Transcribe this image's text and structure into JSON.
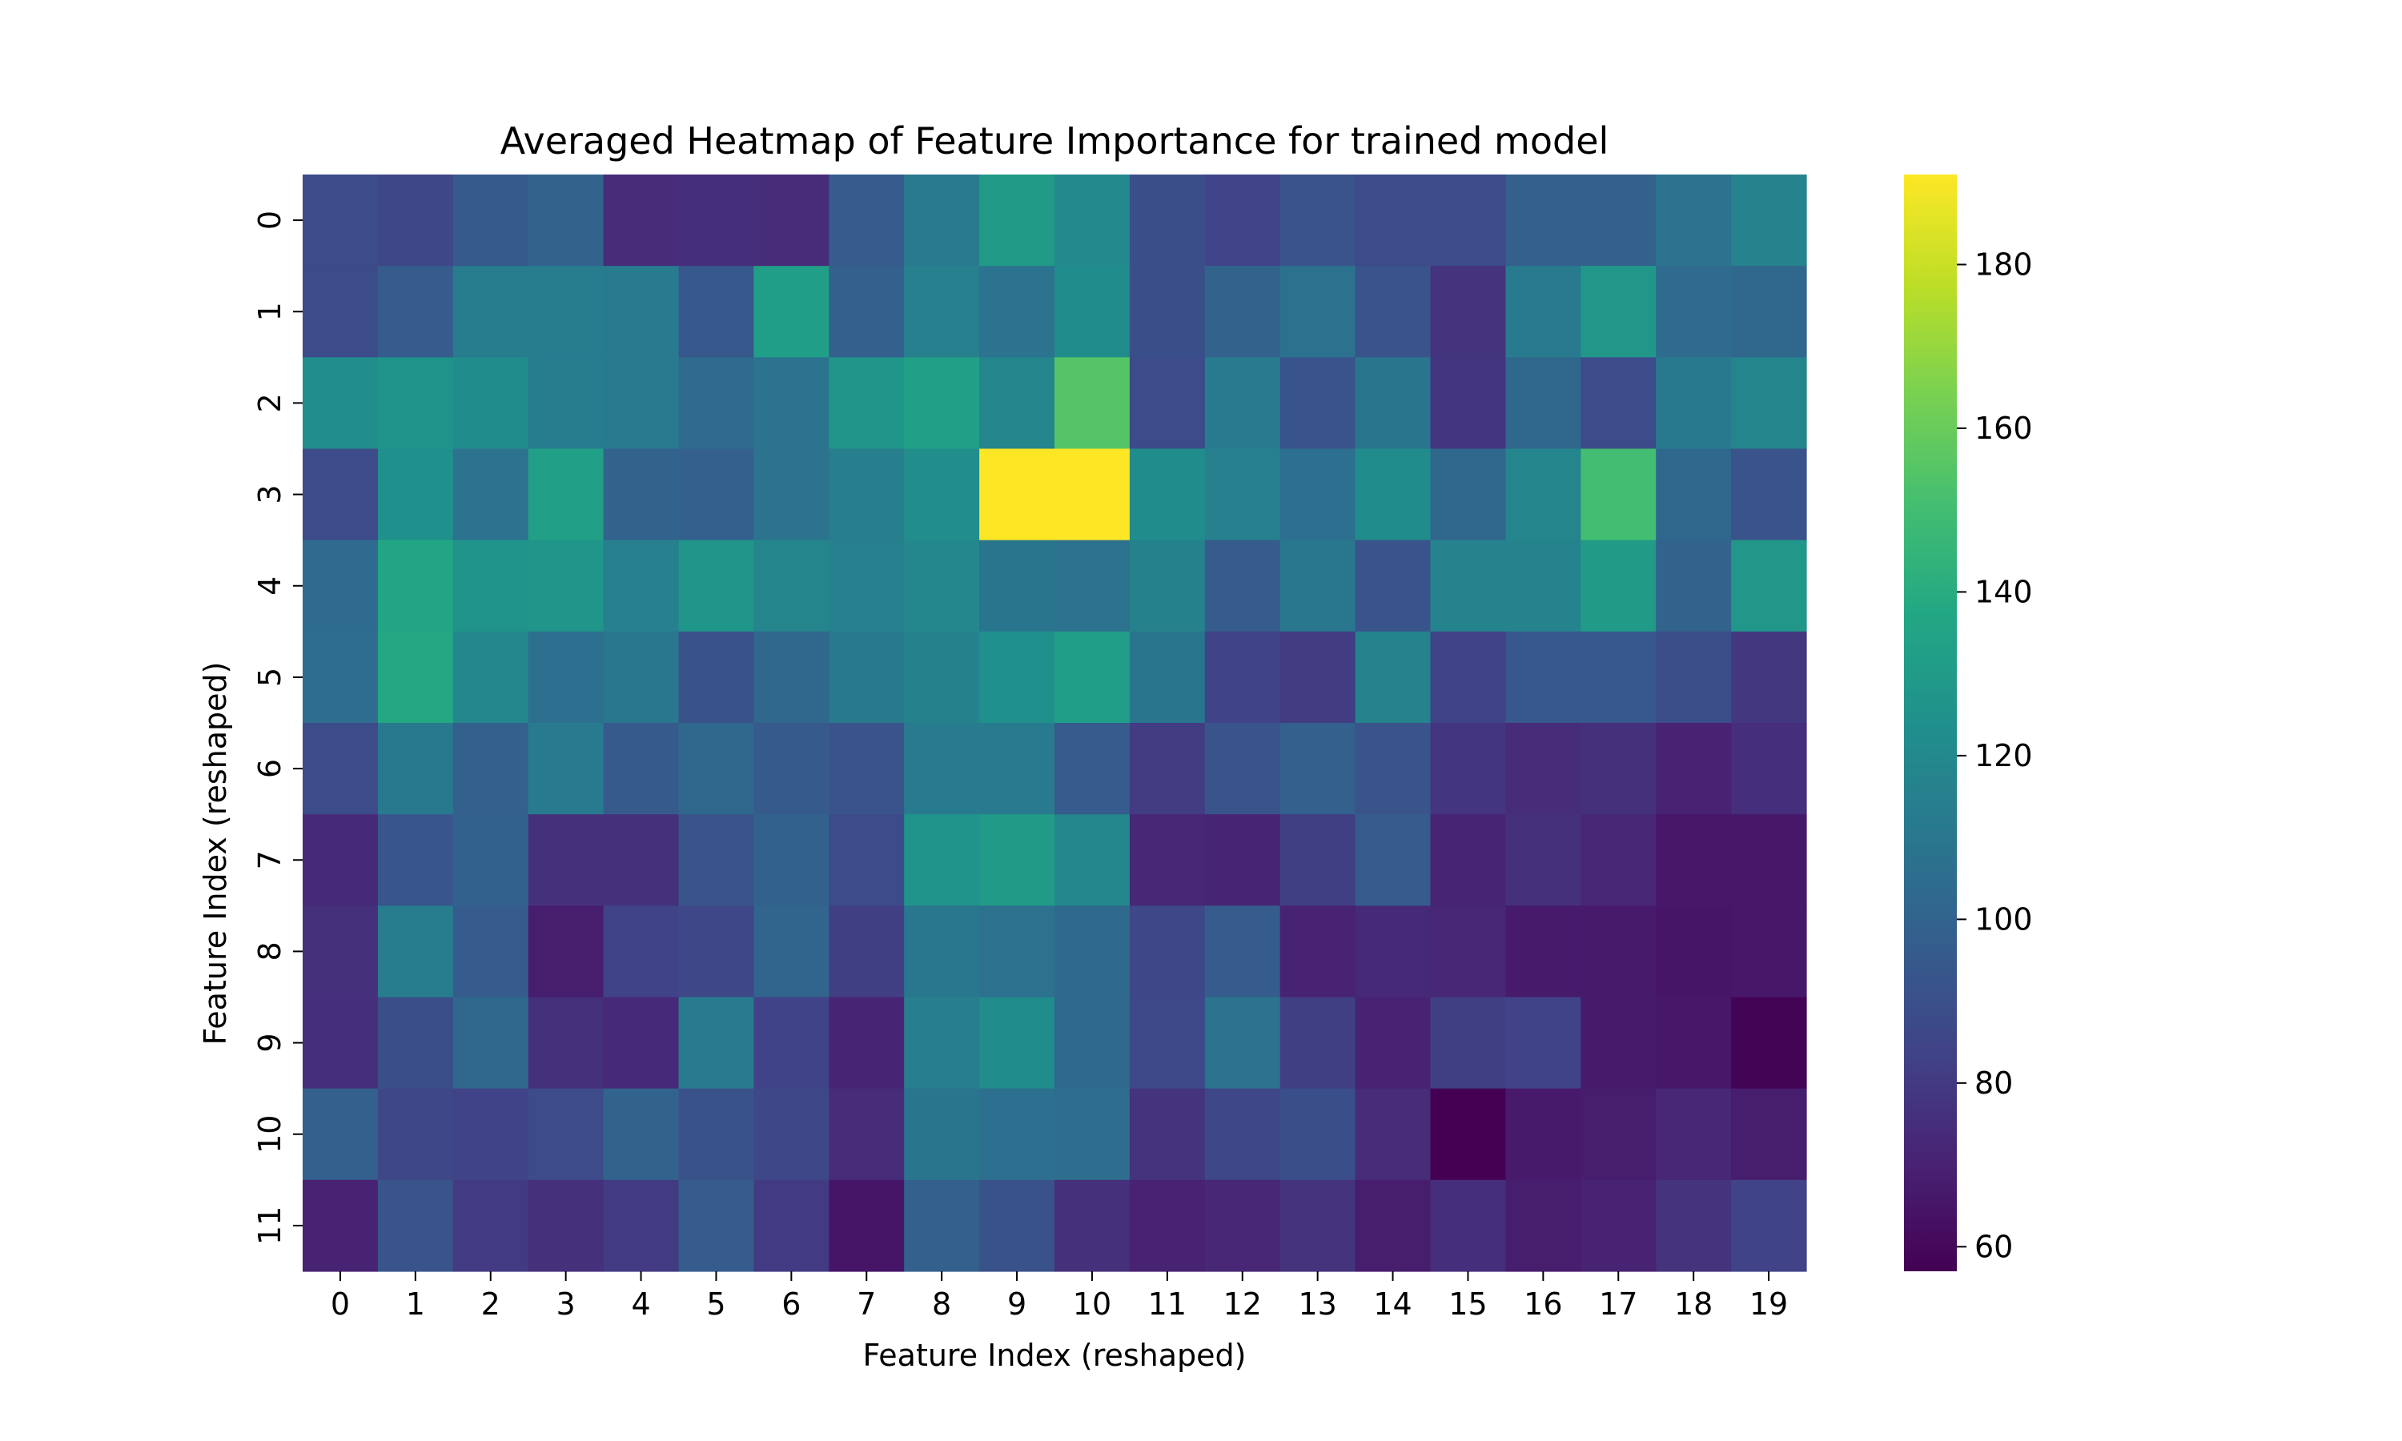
{
  "chart_data": {
    "type": "heatmap",
    "title": "Averaged Heatmap of Feature Importance for trained model",
    "xlabel": "Feature Index (reshaped)",
    "ylabel": "Feature Index (reshaped)",
    "x_categories": [
      "0",
      "1",
      "2",
      "3",
      "4",
      "5",
      "6",
      "7",
      "8",
      "9",
      "10",
      "11",
      "12",
      "13",
      "14",
      "15",
      "16",
      "17",
      "18",
      "19"
    ],
    "y_categories": [
      "0",
      "1",
      "2",
      "3",
      "4",
      "5",
      "6",
      "7",
      "8",
      "9",
      "10",
      "11"
    ],
    "colormap": "viridis",
    "vmin": 57,
    "vmax": 191,
    "colorbar_ticks": [
      60,
      80,
      100,
      120,
      140,
      160,
      180
    ],
    "values": [
      [
        88,
        86,
        95,
        100,
        74,
        75,
        74,
        96,
        112,
        130,
        120,
        90,
        85,
        92,
        88,
        88,
        98,
        98,
        108,
        117
      ],
      [
        88,
        96,
        113,
        113,
        112,
        94,
        132,
        98,
        115,
        108,
        122,
        90,
        100,
        107,
        92,
        77,
        112,
        128,
        104,
        102
      ],
      [
        123,
        126,
        122,
        113,
        112,
        104,
        108,
        127,
        133,
        118,
        155,
        88,
        112,
        92,
        109,
        78,
        102,
        88,
        111,
        118
      ],
      [
        88,
        124,
        108,
        133,
        100,
        98,
        108,
        114,
        123,
        191,
        191,
        122,
        115,
        106,
        122,
        102,
        118,
        150,
        102,
        92
      ],
      [
        104,
        136,
        126,
        127,
        115,
        127,
        118,
        115,
        119,
        109,
        107,
        116,
        96,
        110,
        92,
        117,
        117,
        130,
        100,
        128
      ],
      [
        105,
        138,
        119,
        106,
        110,
        91,
        102,
        111,
        116,
        124,
        132,
        109,
        84,
        81,
        117,
        84,
        94,
        94,
        89,
        79
      ],
      [
        88,
        111,
        98,
        112,
        95,
        102,
        95,
        92,
        112,
        112,
        96,
        81,
        92,
        98,
        92,
        78,
        74,
        76,
        70,
        75
      ],
      [
        73,
        93,
        99,
        76,
        76,
        92,
        99,
        88,
        126,
        130,
        119,
        72,
        71,
        82,
        96,
        71,
        76,
        72,
        66,
        66
      ],
      [
        76,
        113,
        96,
        68,
        84,
        86,
        101,
        82,
        110,
        107,
        103,
        86,
        96,
        70,
        73,
        72,
        67,
        67,
        65,
        66
      ],
      [
        75,
        90,
        102,
        76,
        73,
        112,
        84,
        71,
        114,
        122,
        103,
        87,
        108,
        82,
        70,
        82,
        84,
        67,
        66,
        58
      ],
      [
        98,
        86,
        84,
        88,
        100,
        91,
        86,
        74,
        109,
        106,
        105,
        77,
        86,
        90,
        74,
        57,
        67,
        68,
        72,
        68
      ],
      [
        70,
        92,
        80,
        76,
        80,
        96,
        80,
        65,
        98,
        91,
        76,
        70,
        72,
        77,
        68,
        75,
        68,
        70,
        77,
        84
      ]
    ]
  }
}
